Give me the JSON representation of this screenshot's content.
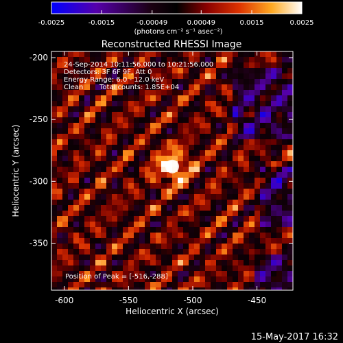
{
  "colorbar": {
    "tick_labels": [
      "-0.0025",
      "-0.0015",
      "-0.00049",
      "0.00049",
      "0.0015",
      "0.0025"
    ],
    "min": -0.0025,
    "max": 0.0025,
    "colormap": [
      "#0000ff",
      "#4400aa",
      "#1a0010",
      "#000000",
      "#6a0000",
      "#cc2200",
      "#ff6600",
      "#ffcc33",
      "#ffffff"
    ]
  },
  "chart_data": {
    "type": "heatmap",
    "title": "Reconstructed RHESSI Image",
    "xlabel": "Heliocentric X (arcsec)",
    "ylabel": "Heliocentric Y (arcsec)",
    "units_label": "(photons cm⁻² s⁻¹ asec⁻²)",
    "xlim": [
      -610,
      -422
    ],
    "ylim": [
      -388,
      -195
    ],
    "x_ticks": [
      -600,
      -550,
      -500,
      -450
    ],
    "x_tick_labels": [
      "-600",
      "-550",
      "-500",
      "-450"
    ],
    "y_ticks": [
      -200,
      -250,
      -300,
      -350
    ],
    "y_tick_labels": [
      "-200",
      "-250",
      "-300",
      "-350"
    ],
    "peak": {
      "x": -516,
      "y": -288
    },
    "annotations": [
      "24-Sep-2014 10:11:56.000 to 10:21:56.000",
      "Detectors: 3F 6F 9F, Att 0",
      "Energy Range: 6.0 - 12.0 keV",
      "Clean",
      "Total counts: 1.85E+04"
    ],
    "peak_label": "Position of Peak = [-516,-288]"
  },
  "footer": {
    "timestamp": "15-May-2017 16:32"
  }
}
